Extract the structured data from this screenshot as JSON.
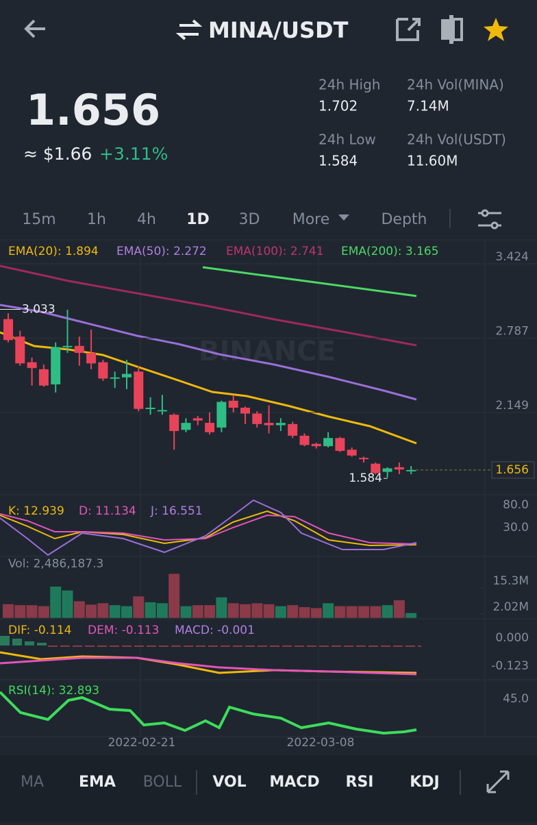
{
  "header": {
    "title": "MINA/USDT"
  },
  "price": {
    "last": "1.656",
    "fiat": "≈ $1.66",
    "change": "+3.11%"
  },
  "stats": [
    {
      "label": "24h High",
      "value": "1.702"
    },
    {
      "label": "24h Vol(MINA)",
      "value": "7.14M"
    },
    {
      "label": "24h Low",
      "value": "1.584"
    },
    {
      "label": "24h Vol(USDT)",
      "value": "11.60M"
    }
  ],
  "intervals": [
    "15m",
    "1h",
    "4h",
    "1D",
    "3D",
    "More",
    "Depth"
  ],
  "chart": {
    "ema_legend": [
      "EMA(20): 1.894",
      "EMA(50): 2.272",
      "EMA(100): 2.741",
      "EMA(200): 3.165"
    ],
    "watermark": "BINANCE",
    "price_axis": [
      3.424,
      2.787,
      2.149
    ],
    "high_marker": 3.033,
    "low_marker": 1.584,
    "current_price": 1.656,
    "candles": [
      {
        "open": 2.95,
        "high": 3.0,
        "low": 2.75,
        "close": 2.77
      },
      {
        "open": 2.8,
        "high": 2.85,
        "low": 2.55,
        "close": 2.57
      },
      {
        "open": 2.58,
        "high": 2.62,
        "low": 2.38,
        "close": 2.53
      },
      {
        "open": 2.52,
        "high": 2.56,
        "low": 2.37,
        "close": 2.38
      },
      {
        "open": 2.39,
        "high": 2.75,
        "low": 2.32,
        "close": 2.71
      },
      {
        "open": 2.71,
        "high": 3.03,
        "low": 2.66,
        "close": 2.72
      },
      {
        "open": 2.72,
        "high": 2.8,
        "low": 2.55,
        "close": 2.66
      },
      {
        "open": 2.66,
        "high": 2.86,
        "low": 2.52,
        "close": 2.57
      },
      {
        "open": 2.58,
        "high": 2.6,
        "low": 2.42,
        "close": 2.44
      },
      {
        "open": 2.44,
        "high": 2.5,
        "low": 2.36,
        "close": 2.45
      },
      {
        "open": 2.45,
        "high": 2.6,
        "low": 2.35,
        "close": 2.48
      },
      {
        "open": 2.5,
        "high": 2.55,
        "low": 2.16,
        "close": 2.18
      },
      {
        "open": 2.18,
        "high": 2.28,
        "low": 2.13,
        "close": 2.19
      },
      {
        "open": 2.16,
        "high": 2.3,
        "low": 2.13,
        "close": 2.17
      },
      {
        "open": 2.13,
        "high": 2.14,
        "low": 1.83,
        "close": 1.99
      },
      {
        "open": 2.0,
        "high": 2.1,
        "low": 1.98,
        "close": 2.06
      },
      {
        "open": 2.1,
        "high": 2.12,
        "low": 2.04,
        "close": 2.08
      },
      {
        "open": 2.06,
        "high": 2.15,
        "low": 1.96,
        "close": 1.98
      },
      {
        "open": 2.02,
        "high": 2.25,
        "low": 1.98,
        "close": 2.24
      },
      {
        "open": 2.25,
        "high": 2.3,
        "low": 2.15,
        "close": 2.19
      },
      {
        "open": 2.19,
        "high": 2.2,
        "low": 2.05,
        "close": 2.14
      },
      {
        "open": 2.14,
        "high": 2.16,
        "low": 2.02,
        "close": 2.05
      },
      {
        "open": 2.06,
        "high": 2.21,
        "low": 1.97,
        "close": 2.04
      },
      {
        "open": 2.04,
        "high": 2.1,
        "low": 1.99,
        "close": 2.06
      },
      {
        "open": 2.05,
        "high": 2.07,
        "low": 1.93,
        "close": 1.95
      },
      {
        "open": 1.95,
        "high": 1.97,
        "low": 1.86,
        "close": 1.87
      },
      {
        "open": 1.88,
        "high": 1.89,
        "low": 1.84,
        "close": 1.86
      },
      {
        "open": 1.86,
        "high": 1.98,
        "low": 1.85,
        "close": 1.93
      },
      {
        "open": 1.93,
        "high": 1.94,
        "low": 1.81,
        "close": 1.82
      },
      {
        "open": 1.83,
        "high": 1.85,
        "low": 1.77,
        "close": 1.78
      },
      {
        "open": 1.76,
        "high": 1.77,
        "low": 1.72,
        "close": 1.75
      },
      {
        "open": 1.71,
        "high": 1.72,
        "low": 1.62,
        "close": 1.63
      },
      {
        "open": 1.64,
        "high": 1.68,
        "low": 1.59,
        "close": 1.67
      },
      {
        "open": 1.68,
        "high": 1.72,
        "low": 1.62,
        "close": 1.66
      },
      {
        "open": 1.655,
        "high": 1.69,
        "low": 1.62,
        "close": 1.656
      }
    ],
    "kdj_legend": [
      "K: 12.939",
      "D: 11.134",
      "J: 16.551"
    ],
    "kdj_axis": [
      "80.0",
      "30.0"
    ],
    "volume_legend": "Vol: 2,486,187.3",
    "volume_axis": [
      {
        "value": 15300000,
        "label": "15.3M"
      },
      {
        "value": 2020000,
        "label": "2.02M"
      }
    ],
    "volumes": [
      7000000,
      6500000,
      6500000,
      6000000,
      16000000,
      14000000,
      8500000,
      6800000,
      7500000,
      6500000,
      6000000,
      11000000,
      8000000,
      7500000,
      22500000,
      6000000,
      6500000,
      6500000,
      10500000,
      7500000,
      7000000,
      7500000,
      7000000,
      6000000,
      6500000,
      5500000,
      5000000,
      7500000,
      6000000,
      6000000,
      6000000,
      6000000,
      6500000,
      9000000,
      2486187.3
    ],
    "macd_legend": [
      "DIF: -0.114",
      "DEM: -0.113",
      "MACD: -0.001"
    ],
    "macd_axis": [
      "0.000",
      "-0.123"
    ],
    "rsi_legend": "RSI(14): 32.893",
    "rsi_axis": [
      "45.0"
    ],
    "dates": [
      "2022-02-21",
      "2022-03-08"
    ]
  },
  "indicators": [
    "MA",
    "EMA",
    "BOLL",
    "VOL",
    "MACD",
    "RSI",
    "KDJ"
  ]
}
